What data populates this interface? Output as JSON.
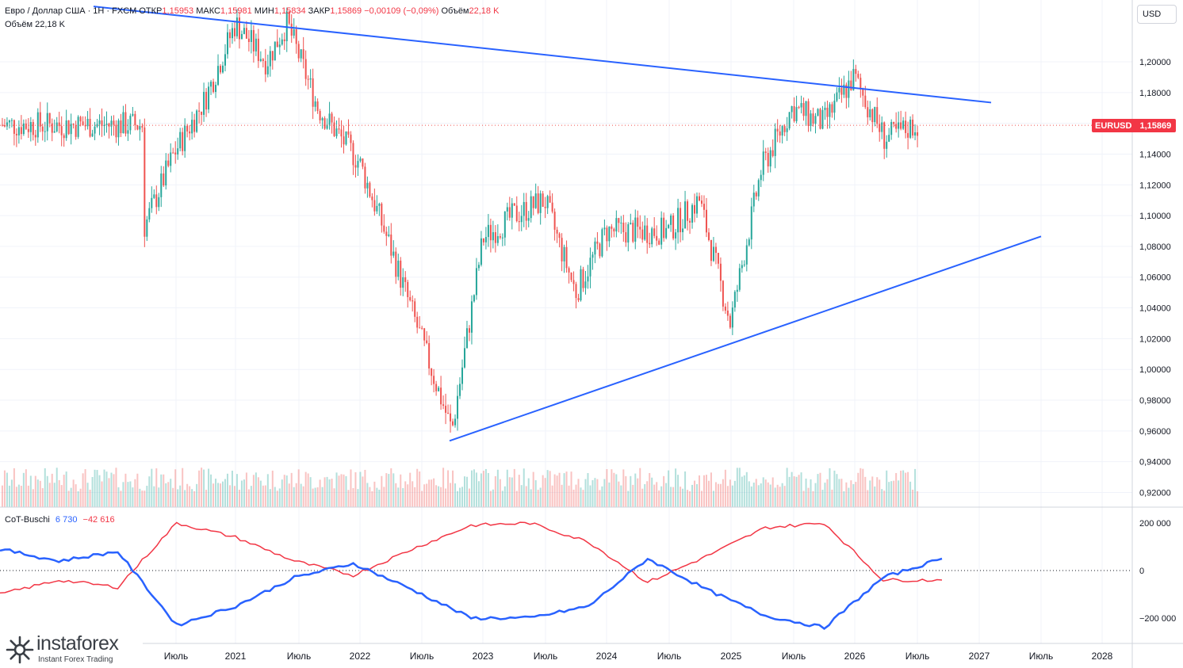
{
  "legend": {
    "title": "Евро / Доллар США · 1Н · FXCM",
    "open_label": "ОТКР",
    "open_value": "1,15953",
    "high_label": "МАКС",
    "high_value": "1,15981",
    "low_label": "МИН",
    "low_value": "1,15834",
    "close_label": "ЗАКР",
    "close_value": "1,15869",
    "change": "−0,00109 (−0,09%)",
    "volume_label": "Объём",
    "volume_value": "22,18 K",
    "volume_line": "Объём  22,18 K"
  },
  "currency_button": "USD",
  "price_tag": {
    "symbol": "EURUSD",
    "value": "1,15869"
  },
  "price_axis": [
    "1,20000",
    "1,18000",
    "1,16000",
    "1,14000",
    "1,12000",
    "1,10000",
    "1,08000",
    "1,06000",
    "1,04000",
    "1,02000",
    "1,00000",
    "0,98000",
    "0,96000",
    "0,94000",
    "0,92000"
  ],
  "cot": {
    "title": "CoT-Buschi",
    "value_blue": "6 730",
    "value_red": "−42 616",
    "axis": [
      "200 000",
      "0",
      "−200 000"
    ]
  },
  "time_axis": [
    "Июль",
    "2021",
    "Июль",
    "2022",
    "Июль",
    "2023",
    "Июль",
    "2024",
    "Июль",
    "2025",
    "Июль",
    "2026",
    "Июль",
    "2027",
    "Июль",
    "2028"
  ],
  "logo": {
    "name": "instaforex",
    "tagline": "Instant Forex Trading"
  },
  "colors": {
    "up": "#26a69a",
    "down": "#ef5350",
    "trendline": "#2962ff",
    "cot_blue": "#2962ff",
    "cot_red": "#f23645"
  },
  "chart_data": {
    "type": "candlestick",
    "symbol": "EURUSD",
    "ylim": [
      0.912,
      1.215
    ],
    "close_price": 1.15869,
    "price_samples": [
      {
        "x": "2020-04",
        "y": 1.09
      },
      {
        "x": "2020-07",
        "y": 1.14
      },
      {
        "x": "2020-10",
        "y": 1.175
      },
      {
        "x": "2021-01",
        "y": 1.225
      },
      {
        "x": "2021-04",
        "y": 1.2
      },
      {
        "x": "2021-06",
        "y": 1.225
      },
      {
        "x": "2021-09",
        "y": 1.17
      },
      {
        "x": "2022-01",
        "y": 1.135
      },
      {
        "x": "2022-04",
        "y": 1.08
      },
      {
        "x": "2022-07",
        "y": 1.02
      },
      {
        "x": "2022-10",
        "y": 0.96
      },
      {
        "x": "2023-01",
        "y": 1.085
      },
      {
        "x": "2023-04",
        "y": 1.1
      },
      {
        "x": "2023-07",
        "y": 1.11
      },
      {
        "x": "2023-10",
        "y": 1.05
      },
      {
        "x": "2024-01",
        "y": 1.09
      },
      {
        "x": "2024-07",
        "y": 1.09
      },
      {
        "x": "2024-10",
        "y": 1.11
      },
      {
        "x": "2025-01",
        "y": 1.03
      },
      {
        "x": "2025-04",
        "y": 1.13
      },
      {
        "x": "2025-07",
        "y": 1.17
      },
      {
        "x": "2025-10",
        "y": 1.16
      },
      {
        "x": "2026-01",
        "y": 1.19
      },
      {
        "x": "2026-04",
        "y": 1.15
      },
      {
        "x": "2026-07",
        "y": 1.159
      }
    ],
    "cot_samples": {
      "blue": [
        90000,
        40000,
        80000,
        -230000,
        -150000,
        -30000,
        30000,
        -80000,
        -200000,
        -200000,
        -150000,
        50000,
        -80000,
        -190000,
        -240000,
        -30000,
        50000
      ],
      "red": [
        -100000,
        -40000,
        -70000,
        200000,
        140000,
        40000,
        -20000,
        90000,
        190000,
        200000,
        120000,
        -50000,
        60000,
        180000,
        200000,
        -40000,
        -40000
      ]
    }
  }
}
